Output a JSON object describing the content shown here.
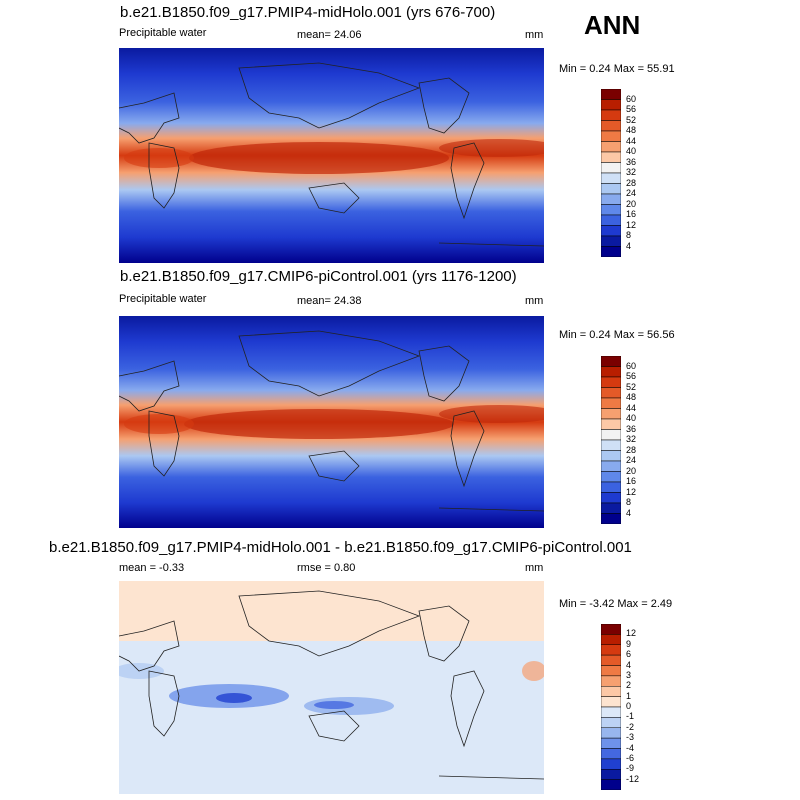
{
  "season": "ANN",
  "panels": [
    {
      "title": "b.e21.B1850.f09_g17.PMIP4-midHolo.001 (yrs 676-700)",
      "left_label": "Precipitable water",
      "center_label": "mean=  24.06",
      "right_label": "mm",
      "minmax": "Min =   0.24 Max =  55.91",
      "colorbar": {
        "labels": [
          "60",
          "56",
          "52",
          "48",
          "44",
          "40",
          "36",
          "32",
          "28",
          "24",
          "20",
          "16",
          "12",
          "8",
          "4"
        ],
        "colors": [
          "#7a0000",
          "#b81e00",
          "#d53a10",
          "#e45a28",
          "#ef7a44",
          "#f6a070",
          "#fcc8a6",
          "#f2f2f2",
          "#cfe0f6",
          "#abc8f2",
          "#88aaee",
          "#5f88ea",
          "#3b62e0",
          "#1e3ad0",
          "#0a1aa0",
          "#00008c"
        ]
      }
    },
    {
      "title": "b.e21.B1850.f09_g17.CMIP6-piControl.001 (yrs 1176-1200)",
      "left_label": "Precipitable water",
      "center_label": "mean=  24.38",
      "right_label": "mm",
      "minmax": "Min =   0.24 Max =  56.56",
      "colorbar": {
        "labels": [
          "60",
          "56",
          "52",
          "48",
          "44",
          "40",
          "36",
          "32",
          "28",
          "24",
          "20",
          "16",
          "12",
          "8",
          "4"
        ],
        "colors": [
          "#7a0000",
          "#b81e00",
          "#d53a10",
          "#e45a28",
          "#ef7a44",
          "#f6a070",
          "#fcc8a6",
          "#f2f2f2",
          "#cfe0f6",
          "#abc8f2",
          "#88aaee",
          "#5f88ea",
          "#3b62e0",
          "#1e3ad0",
          "#0a1aa0",
          "#00008c"
        ]
      }
    },
    {
      "title": "b.e21.B1850.f09_g17.PMIP4-midHolo.001 - b.e21.B1850.f09_g17.CMIP6-piControl.001",
      "left_label": "mean =  -0.33",
      "center_label": "rmse =   0.80",
      "right_label": "mm",
      "minmax": "Min =  -3.42 Max =   2.49",
      "colorbar": {
        "labels": [
          "12",
          "9",
          "6",
          "4",
          "3",
          "2",
          "1",
          "0",
          "-1",
          "-2",
          "-3",
          "-4",
          "-6",
          "-9",
          "-12"
        ],
        "colors": [
          "#7a0000",
          "#b81e00",
          "#d53a10",
          "#e45a28",
          "#ef7a44",
          "#f6a070",
          "#fcc8a6",
          "#fde4d0",
          "#dce8f8",
          "#bcd2f4",
          "#98b6ee",
          "#6e92ea",
          "#4468e0",
          "#2040d0",
          "#0a1aa0",
          "#00008c"
        ]
      }
    }
  ]
}
